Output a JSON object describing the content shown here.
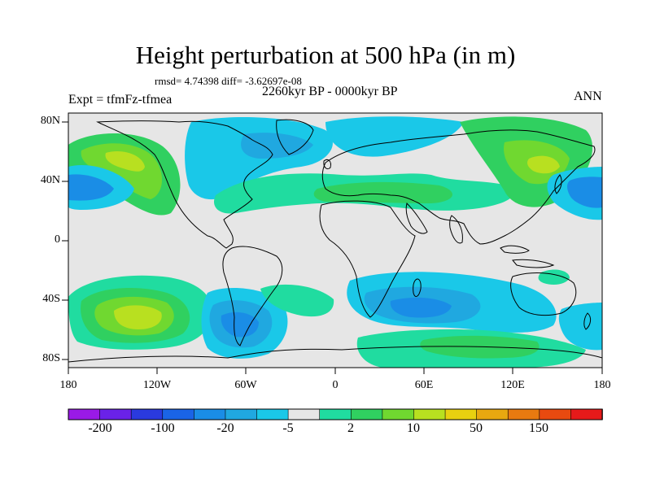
{
  "title": "Height perturbation at 500 hPa (in m)",
  "stats": "rmsd= 4.74398 diff= -3.62697e-08",
  "experiment": "Expt = tfmFz-tfmea",
  "period": "2260kyr BP - 0000kyr BP",
  "season": "ANN",
  "lat_ticks": [
    "80N",
    "40N",
    "0",
    "40S",
    "80S"
  ],
  "lon_ticks": [
    "180",
    "120W",
    "60W",
    "0",
    "60E",
    "120E",
    "180"
  ],
  "colorbar": {
    "labels": [
      "-200",
      "-100",
      "-20",
      "-5",
      "2",
      "10",
      "50",
      "150"
    ],
    "colors": [
      "#9a1ae6",
      "#6a22e8",
      "#2a3adf",
      "#1a64e6",
      "#1a8de6",
      "#20a8e0",
      "#1ac8e8",
      "#e6e6e6",
      "#20dca0",
      "#30d060",
      "#70d830",
      "#b8e020",
      "#e8d010",
      "#e8a810",
      "#e87a10",
      "#e84a10",
      "#e61a1a"
    ]
  },
  "colors": {
    "background": "#e6e6e6",
    "neg_weak": "#1ac8e8",
    "neg_mid": "#20a8e0",
    "neg_strong": "#1a8de6",
    "pos_weak": "#20dca0",
    "pos_mid": "#30d060",
    "pos_strong": "#b8e020"
  }
}
